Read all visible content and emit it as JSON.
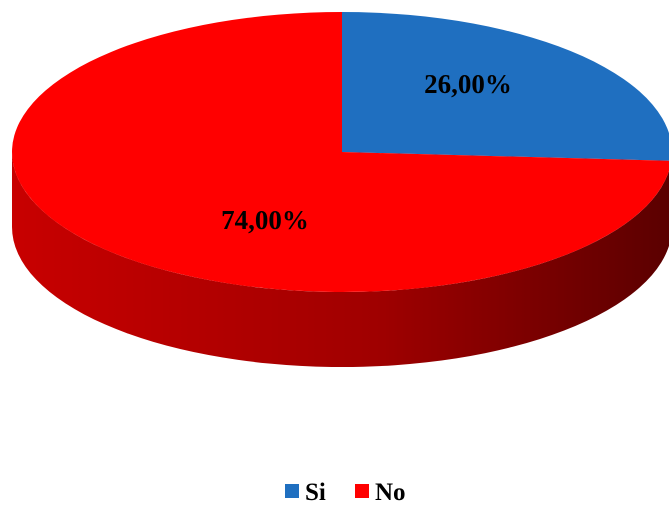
{
  "chart_data": {
    "type": "pie",
    "style": "3d",
    "title": "",
    "categories": [
      "Si",
      "No"
    ],
    "values": [
      26.0,
      74.0
    ],
    "data_labels": [
      "26,00%",
      "74,00%"
    ],
    "colors": [
      "#1F6FC0",
      "#FF0000"
    ],
    "legend": {
      "placement": "bottom",
      "entries": [
        "Si",
        "No"
      ]
    }
  }
}
